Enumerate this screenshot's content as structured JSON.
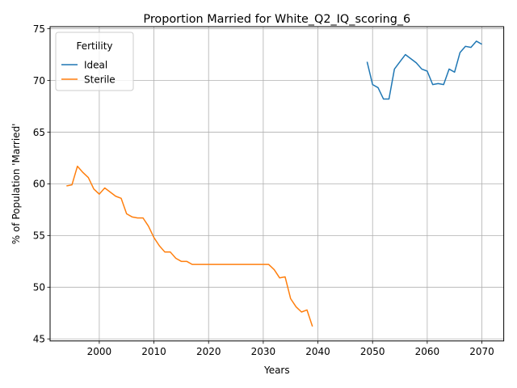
{
  "chart_data": {
    "type": "line",
    "title": "Proportion Married for White_Q2_IQ_scoring_6",
    "xlabel": "Years",
    "ylabel": "% of Population 'Married'",
    "xlim": [
      1991,
      2074
    ],
    "ylim": [
      44.8,
      75.2
    ],
    "xticks": [
      2000,
      2010,
      2020,
      2030,
      2040,
      2050,
      2060,
      2070
    ],
    "yticks": [
      45,
      50,
      55,
      60,
      65,
      70,
      75
    ],
    "grid": true,
    "legend": {
      "title": "Fertility",
      "placement": "upper-left"
    },
    "series": [
      {
        "name": "Ideal",
        "color": "#1f77b4",
        "x": [
          2049,
          2050,
          2051,
          2052,
          2053,
          2054,
          2055,
          2056,
          2057,
          2058,
          2059,
          2060,
          2061,
          2062,
          2063,
          2064,
          2065,
          2066,
          2067,
          2068,
          2069,
          2070
        ],
        "y": [
          71.8,
          69.6,
          69.3,
          68.2,
          68.2,
          71.1,
          71.8,
          72.5,
          72.1,
          71.7,
          71.1,
          70.9,
          69.6,
          69.7,
          69.6,
          71.1,
          70.8,
          72.7,
          73.3,
          73.2,
          73.8,
          73.5
        ]
      },
      {
        "name": "Sterile",
        "color": "#ff7f0e",
        "x": [
          1994,
          1995,
          1996,
          1997,
          1998,
          1999,
          2000,
          2001,
          2002,
          2003,
          2004,
          2005,
          2006,
          2007,
          2008,
          2009,
          2010,
          2011,
          2012,
          2013,
          2014,
          2015,
          2016,
          2017,
          2018,
          2019,
          2020,
          2021,
          2022,
          2023,
          2024,
          2025,
          2026,
          2027,
          2028,
          2029,
          2030,
          2031,
          2032,
          2033,
          2034,
          2035,
          2036,
          2037,
          2038,
          2039
        ],
        "y": [
          59.8,
          59.9,
          61.7,
          61.1,
          60.6,
          59.5,
          59.0,
          59.6,
          59.2,
          58.8,
          58.6,
          57.1,
          56.8,
          56.7,
          56.7,
          55.9,
          54.8,
          54.0,
          53.4,
          53.4,
          52.8,
          52.5,
          52.5,
          52.2,
          52.2,
          52.2,
          52.2,
          52.2,
          52.2,
          52.2,
          52.2,
          52.2,
          52.2,
          52.2,
          52.2,
          52.2,
          52.2,
          52.2,
          51.7,
          50.9,
          51.0,
          48.9,
          48.1,
          47.6,
          47.8,
          46.2
        ]
      }
    ]
  }
}
